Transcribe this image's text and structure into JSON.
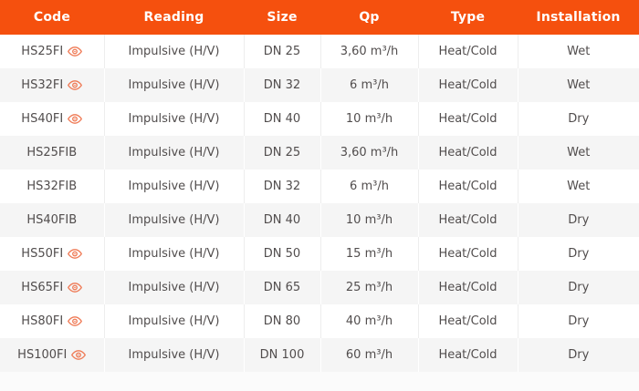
{
  "accent_color": "#f5500e",
  "view_icon_color": "#ef7a55",
  "table": {
    "columns": [
      {
        "key": "code",
        "label": "Code"
      },
      {
        "key": "reading",
        "label": "Reading"
      },
      {
        "key": "size",
        "label": "Size"
      },
      {
        "key": "qp",
        "label": "Qp"
      },
      {
        "key": "type",
        "label": "Type"
      },
      {
        "key": "installation",
        "label": "Installation"
      }
    ],
    "rows": [
      {
        "code": "HS25FI",
        "has_view_icon": true,
        "reading": "Impulsive (H/V)",
        "size": "DN 25",
        "qp": "3,60 m³/h",
        "type": "Heat/Cold",
        "installation": "Wet"
      },
      {
        "code": "HS32FI",
        "has_view_icon": true,
        "reading": "Impulsive (H/V)",
        "size": "DN 32",
        "qp": "6 m³/h",
        "type": "Heat/Cold",
        "installation": "Wet"
      },
      {
        "code": "HS40FI",
        "has_view_icon": true,
        "reading": "Impulsive (H/V)",
        "size": "DN 40",
        "qp": "10 m³/h",
        "type": "Heat/Cold",
        "installation": "Dry"
      },
      {
        "code": "HS25FIB",
        "has_view_icon": false,
        "reading": "Impulsive (H/V)",
        "size": "DN 25",
        "qp": "3,60 m³/h",
        "type": "Heat/Cold",
        "installation": "Wet"
      },
      {
        "code": "HS32FIB",
        "has_view_icon": false,
        "reading": "Impulsive (H/V)",
        "size": "DN 32",
        "qp": "6 m³/h",
        "type": "Heat/Cold",
        "installation": "Wet"
      },
      {
        "code": "HS40FIB",
        "has_view_icon": false,
        "reading": "Impulsive (H/V)",
        "size": "DN 40",
        "qp": "10 m³/h",
        "type": "Heat/Cold",
        "installation": "Dry"
      },
      {
        "code": "HS50FI",
        "has_view_icon": true,
        "reading": "Impulsive (H/V)",
        "size": "DN 50",
        "qp": "15 m³/h",
        "type": "Heat/Cold",
        "installation": "Dry"
      },
      {
        "code": "HS65FI",
        "has_view_icon": true,
        "reading": "Impulsive (H/V)",
        "size": "DN 65",
        "qp": "25 m³/h",
        "type": "Heat/Cold",
        "installation": "Dry"
      },
      {
        "code": "HS80FI",
        "has_view_icon": true,
        "reading": "Impulsive (H/V)",
        "size": "DN 80",
        "qp": "40 m³/h",
        "type": "Heat/Cold",
        "installation": "Dry"
      },
      {
        "code": "HS100FI",
        "has_view_icon": true,
        "reading": "Impulsive (H/V)",
        "size": "DN 100",
        "qp": "60 m³/h",
        "type": "Heat/Cold",
        "installation": "Dry"
      }
    ]
  }
}
